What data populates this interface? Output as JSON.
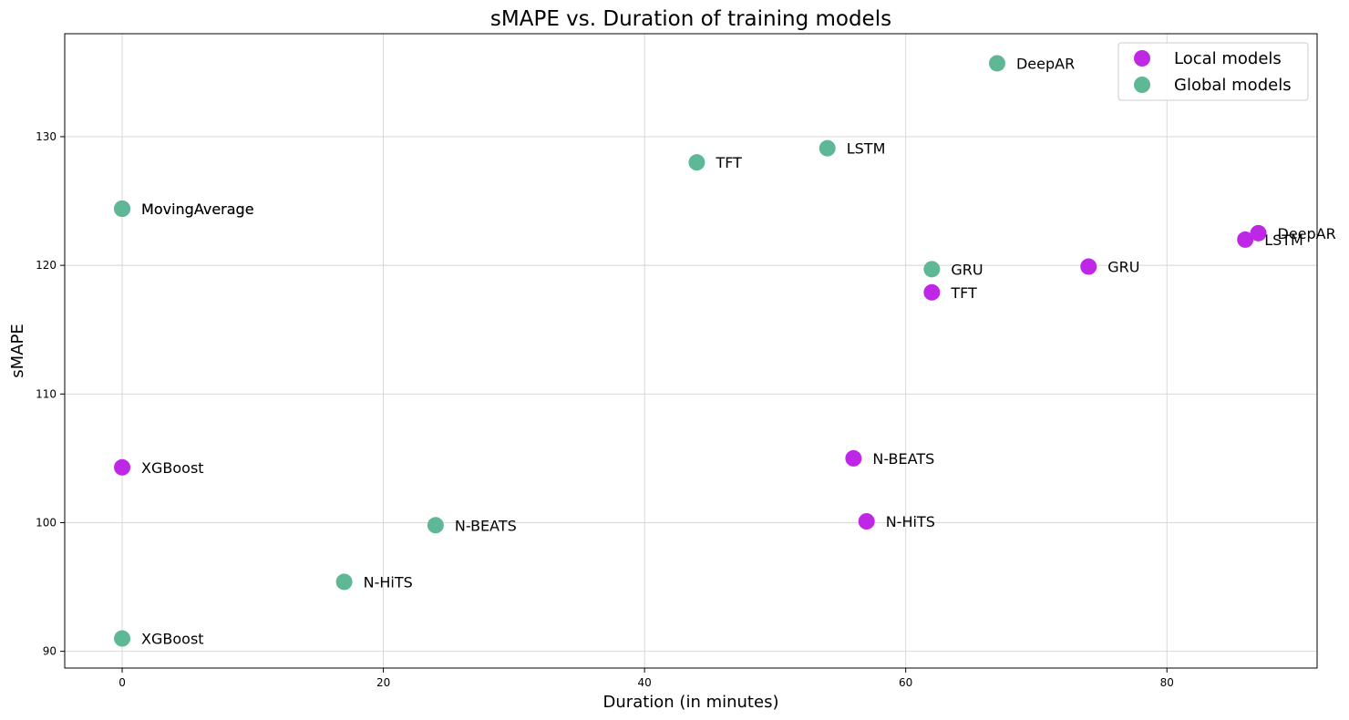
{
  "chart_data": {
    "type": "scatter",
    "title": "sMAPE vs. Duration of training models",
    "xlabel": "Duration (in minutes)",
    "ylabel": "sMAPE",
    "xlim": [
      -4.4,
      91.5
    ],
    "ylim": [
      88.7,
      138.0
    ],
    "xticks": [
      0,
      20,
      40,
      60,
      80
    ],
    "yticks": [
      90,
      100,
      110,
      120,
      130
    ],
    "grid": true,
    "legend_position": "top-right",
    "series": [
      {
        "name": "Local models",
        "color": "#bf27e6",
        "points": [
          {
            "label": "MovingAverage",
            "x": 0,
            "y": 124.4
          },
          {
            "label": "XGBoost",
            "x": 0,
            "y": 104.3
          },
          {
            "label": "N-BEATS",
            "x": 56,
            "y": 105.0
          },
          {
            "label": "N-HiTS",
            "x": 57,
            "y": 100.1
          },
          {
            "label": "TFT",
            "x": 62,
            "y": 117.9
          },
          {
            "label": "GRU",
            "x": 74,
            "y": 119.9
          },
          {
            "label": "LSTM",
            "x": 86,
            "y": 122.0
          },
          {
            "label": "DeepAR",
            "x": 87,
            "y": 122.5
          }
        ]
      },
      {
        "name": "Global models",
        "color": "#5fb895",
        "points": [
          {
            "label": "MovingAverage",
            "x": 0,
            "y": 124.4
          },
          {
            "label": "XGBoost",
            "x": 0,
            "y": 91.0
          },
          {
            "label": "N-HiTS",
            "x": 17,
            "y": 95.4
          },
          {
            "label": "N-BEATS",
            "x": 24,
            "y": 99.8
          },
          {
            "label": "TFT",
            "x": 44,
            "y": 128.0
          },
          {
            "label": "LSTM",
            "x": 54,
            "y": 129.1
          },
          {
            "label": "GRU",
            "x": 62,
            "y": 119.7
          },
          {
            "label": "DeepAR",
            "x": 67,
            "y": 135.7
          }
        ]
      }
    ]
  }
}
